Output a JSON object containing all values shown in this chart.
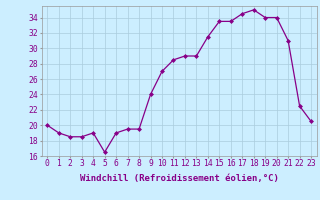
{
  "x": [
    0,
    1,
    2,
    3,
    4,
    5,
    6,
    7,
    8,
    9,
    10,
    11,
    12,
    13,
    14,
    15,
    16,
    17,
    18,
    19,
    20,
    21,
    22,
    23
  ],
  "y": [
    20,
    19,
    18.5,
    18.5,
    19,
    16.5,
    19,
    19.5,
    19.5,
    24,
    27,
    28.5,
    29,
    29,
    31.5,
    33.5,
    33.5,
    34.5,
    35,
    34,
    34,
    31,
    22.5,
    20.5
  ],
  "line_color": "#880088",
  "marker_color": "#880088",
  "bg_color": "#cceeff",
  "grid_color": "#aaccdd",
  "xlabel": "Windchill (Refroidissement éolien,°C)",
  "ylim": [
    16,
    35
  ],
  "yticks": [
    16,
    18,
    20,
    22,
    24,
    26,
    28,
    30,
    32,
    34
  ],
  "xticks": [
    0,
    1,
    2,
    3,
    4,
    5,
    6,
    7,
    8,
    9,
    10,
    11,
    12,
    13,
    14,
    15,
    16,
    17,
    18,
    19,
    20,
    21,
    22,
    23
  ],
  "label_fontsize": 6.5,
  "tick_fontsize": 5.8
}
